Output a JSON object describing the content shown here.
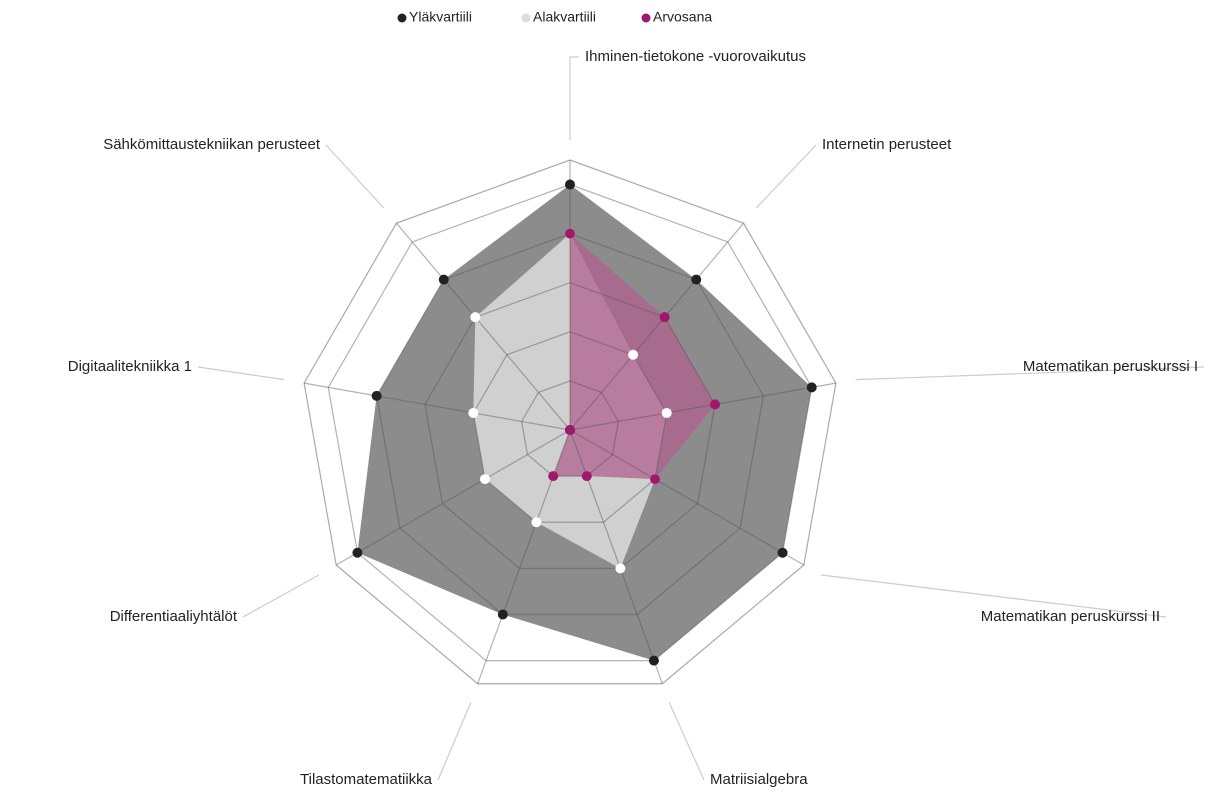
{
  "chart_data": {
    "type": "radar",
    "categories": [
      "Ihminen-tietokone -vuorovaikutus",
      "Internetin perusteet",
      "Matematikan peruskurssi I",
      "Matematikan peruskurssi II",
      "Matriisialgebra",
      "Tilastomatematiikka",
      "Differentiaaliyhtälöt",
      "Digitaalitekniikka 1",
      "Sähkömittaustekniikan perusteet"
    ],
    "series": [
      {
        "name": "Yläkvartiili",
        "color": "#222222",
        "fill": "#8c8c8c",
        "values": [
          5,
          4,
          5,
          5,
          5,
          4,
          5,
          4,
          4
        ]
      },
      {
        "name": "Alakvartiili",
        "color": "#ffffff",
        "fill": "#d0d0d0",
        "values": [
          4,
          2,
          2,
          2,
          3,
          2,
          2,
          2,
          3
        ]
      },
      {
        "name": "Arvosana",
        "color": "#a0176e",
        "fill": "#b0608f",
        "values": [
          4,
          3,
          3,
          2,
          1,
          1,
          0,
          0,
          0
        ]
      }
    ],
    "ylim": [
      0,
      5.5
    ],
    "yticks": [
      1,
      2,
      3,
      4,
      5
    ],
    "legend": "top"
  }
}
